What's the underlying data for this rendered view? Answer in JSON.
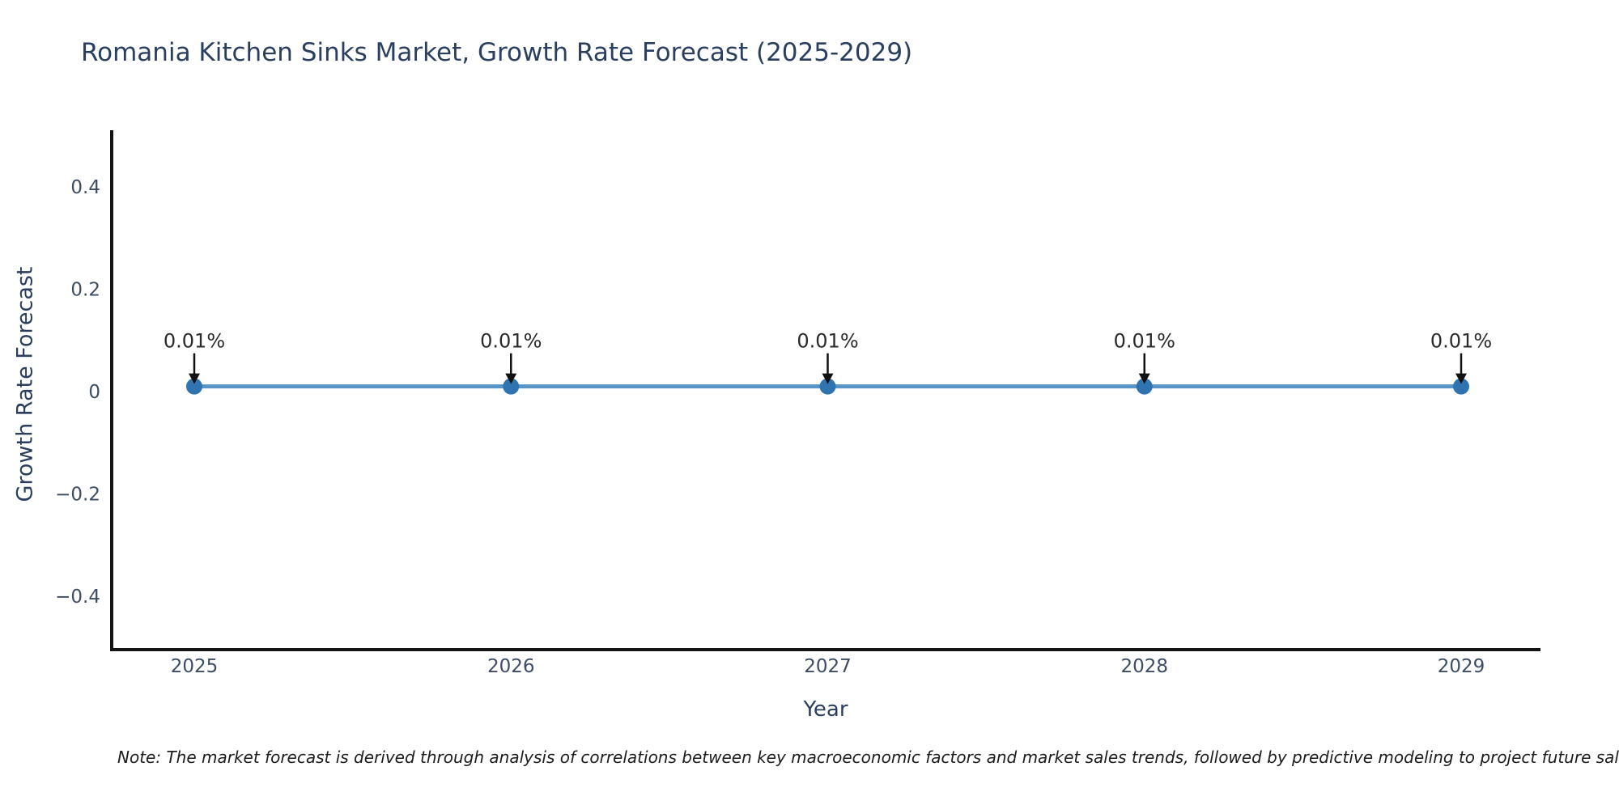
{
  "chart": {
    "note": "Note: The market forecast is derived through analysis of correlations between key macroeconomic factors and market sales trends, followed by predictive modeling to project future sales"
  },
  "chart_data": {
    "type": "line",
    "title": "Romania Kitchen Sinks Market, Growth Rate Forecast (2025-2029)",
    "xlabel": "Year",
    "ylabel": "Growth Rate Forecast",
    "categories": [
      "2025",
      "2026",
      "2027",
      "2028",
      "2029"
    ],
    "values": [
      0.01,
      0.01,
      0.01,
      0.01,
      0.01
    ],
    "point_labels": [
      "0.01%",
      "0.01%",
      "0.01%",
      "0.01%",
      "0.01%"
    ],
    "xtick_labels": [
      "2025",
      "2026",
      "2027",
      "2028",
      "2029"
    ],
    "yticks": [
      0.4,
      0.2,
      0,
      -0.2,
      -0.4
    ],
    "ytick_labels": [
      "0.4",
      "0.2",
      "0",
      "−0.2",
      "−0.4"
    ],
    "ylim": [
      -0.5,
      0.52
    ],
    "grid": false,
    "legend": "none",
    "colors": {
      "line": "#5794c7",
      "marker": "#2f74b0",
      "axis": "#141414",
      "tick_label": "#3d4d66",
      "title": "#2a3f5f",
      "annotation_text": "#2a2a2a",
      "annotation_arrow": "#111111",
      "background": "#ffffff"
    }
  }
}
